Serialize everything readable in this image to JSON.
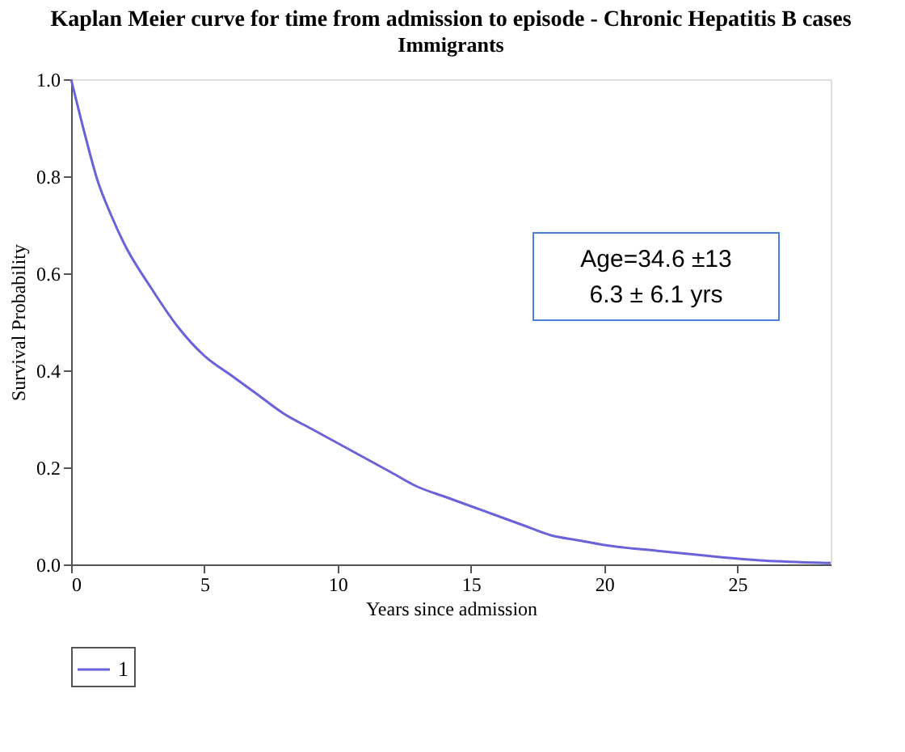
{
  "chart_data": {
    "type": "line",
    "title": "Kaplan Meier curve for time from admission to episode - Chronic Hepatitis B cases",
    "subtitle": "Immigrants",
    "xlabel": "Years since admission",
    "ylabel": "Survival Probability",
    "series": [
      {
        "name": "1",
        "color": "#6a62d8",
        "x": [
          0,
          0.5,
          1,
          1.5,
          2,
          3,
          4,
          5,
          6,
          7,
          8,
          9,
          10,
          11,
          12,
          13,
          14,
          15,
          16,
          17,
          18,
          19,
          20,
          22,
          24,
          26,
          28.5
        ],
        "values": [
          1,
          0.89,
          0.79,
          0.72,
          0.66,
          0.57,
          0.49,
          0.43,
          0.39,
          0.35,
          0.31,
          0.28,
          0.25,
          0.22,
          0.19,
          0.16,
          0.14,
          0.12,
          0.1,
          0.08,
          0.06,
          0.05,
          0.04,
          0.028,
          0.017,
          0.008,
          0.003
        ]
      }
    ],
    "xlim": [
      0,
      28.5
    ],
    "xticks": [
      0,
      5,
      10,
      15,
      20,
      25
    ],
    "ylim": [
      0,
      1
    ],
    "yticks": [
      {
        "value": 0,
        "label": "0.0"
      },
      {
        "value": 0.2,
        "label": "0.2"
      },
      {
        "value": 0.4,
        "label": "0.4"
      },
      {
        "value": 0.6,
        "label": "0.6"
      },
      {
        "value": 0.8,
        "label": "0.8"
      },
      {
        "value": 1,
        "label": "1.0"
      }
    ],
    "annotations": [
      "Age=34.6 ±13",
      "6.3 ± 6.1 yrs"
    ],
    "grid": false,
    "legend": "bottom",
    "marker": "none",
    "line_style": "solid"
  }
}
